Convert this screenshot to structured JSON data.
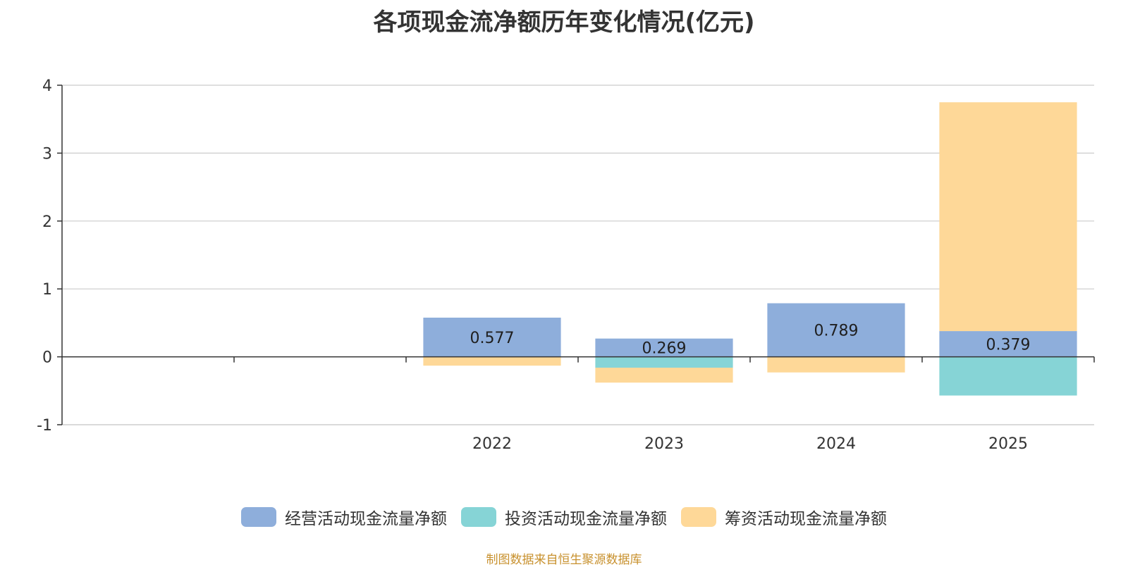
{
  "chart_data": {
    "type": "bar",
    "stacked": true,
    "title": "各项现金流净额历年变化情况(亿元)",
    "categories": [
      "",
      "",
      "2022",
      "2023",
      "2024",
      "2025"
    ],
    "ylim": [
      -1,
      4
    ],
    "yticks": [
      -1,
      0,
      1,
      2,
      3,
      4
    ],
    "grid": true,
    "legend_position": "bottom",
    "series": [
      {
        "name": "经营活动现金流量净额",
        "color": "#8eaedb",
        "values": [
          null,
          null,
          0.577,
          0.269,
          0.789,
          0.379
        ],
        "labels": [
          "",
          "",
          "0.577",
          "0.269",
          "0.789",
          "0.379"
        ]
      },
      {
        "name": "投资活动现金流量净额",
        "color": "#86d4d6",
        "values": [
          null,
          null,
          0,
          -0.16,
          0,
          -0.57
        ]
      },
      {
        "name": "筹资活动现金流量净额",
        "color": "#fed898",
        "values": [
          null,
          null,
          -0.13,
          -0.22,
          -0.23,
          3.37
        ]
      }
    ],
    "source": "制图数据来自恒生聚源数据库"
  }
}
